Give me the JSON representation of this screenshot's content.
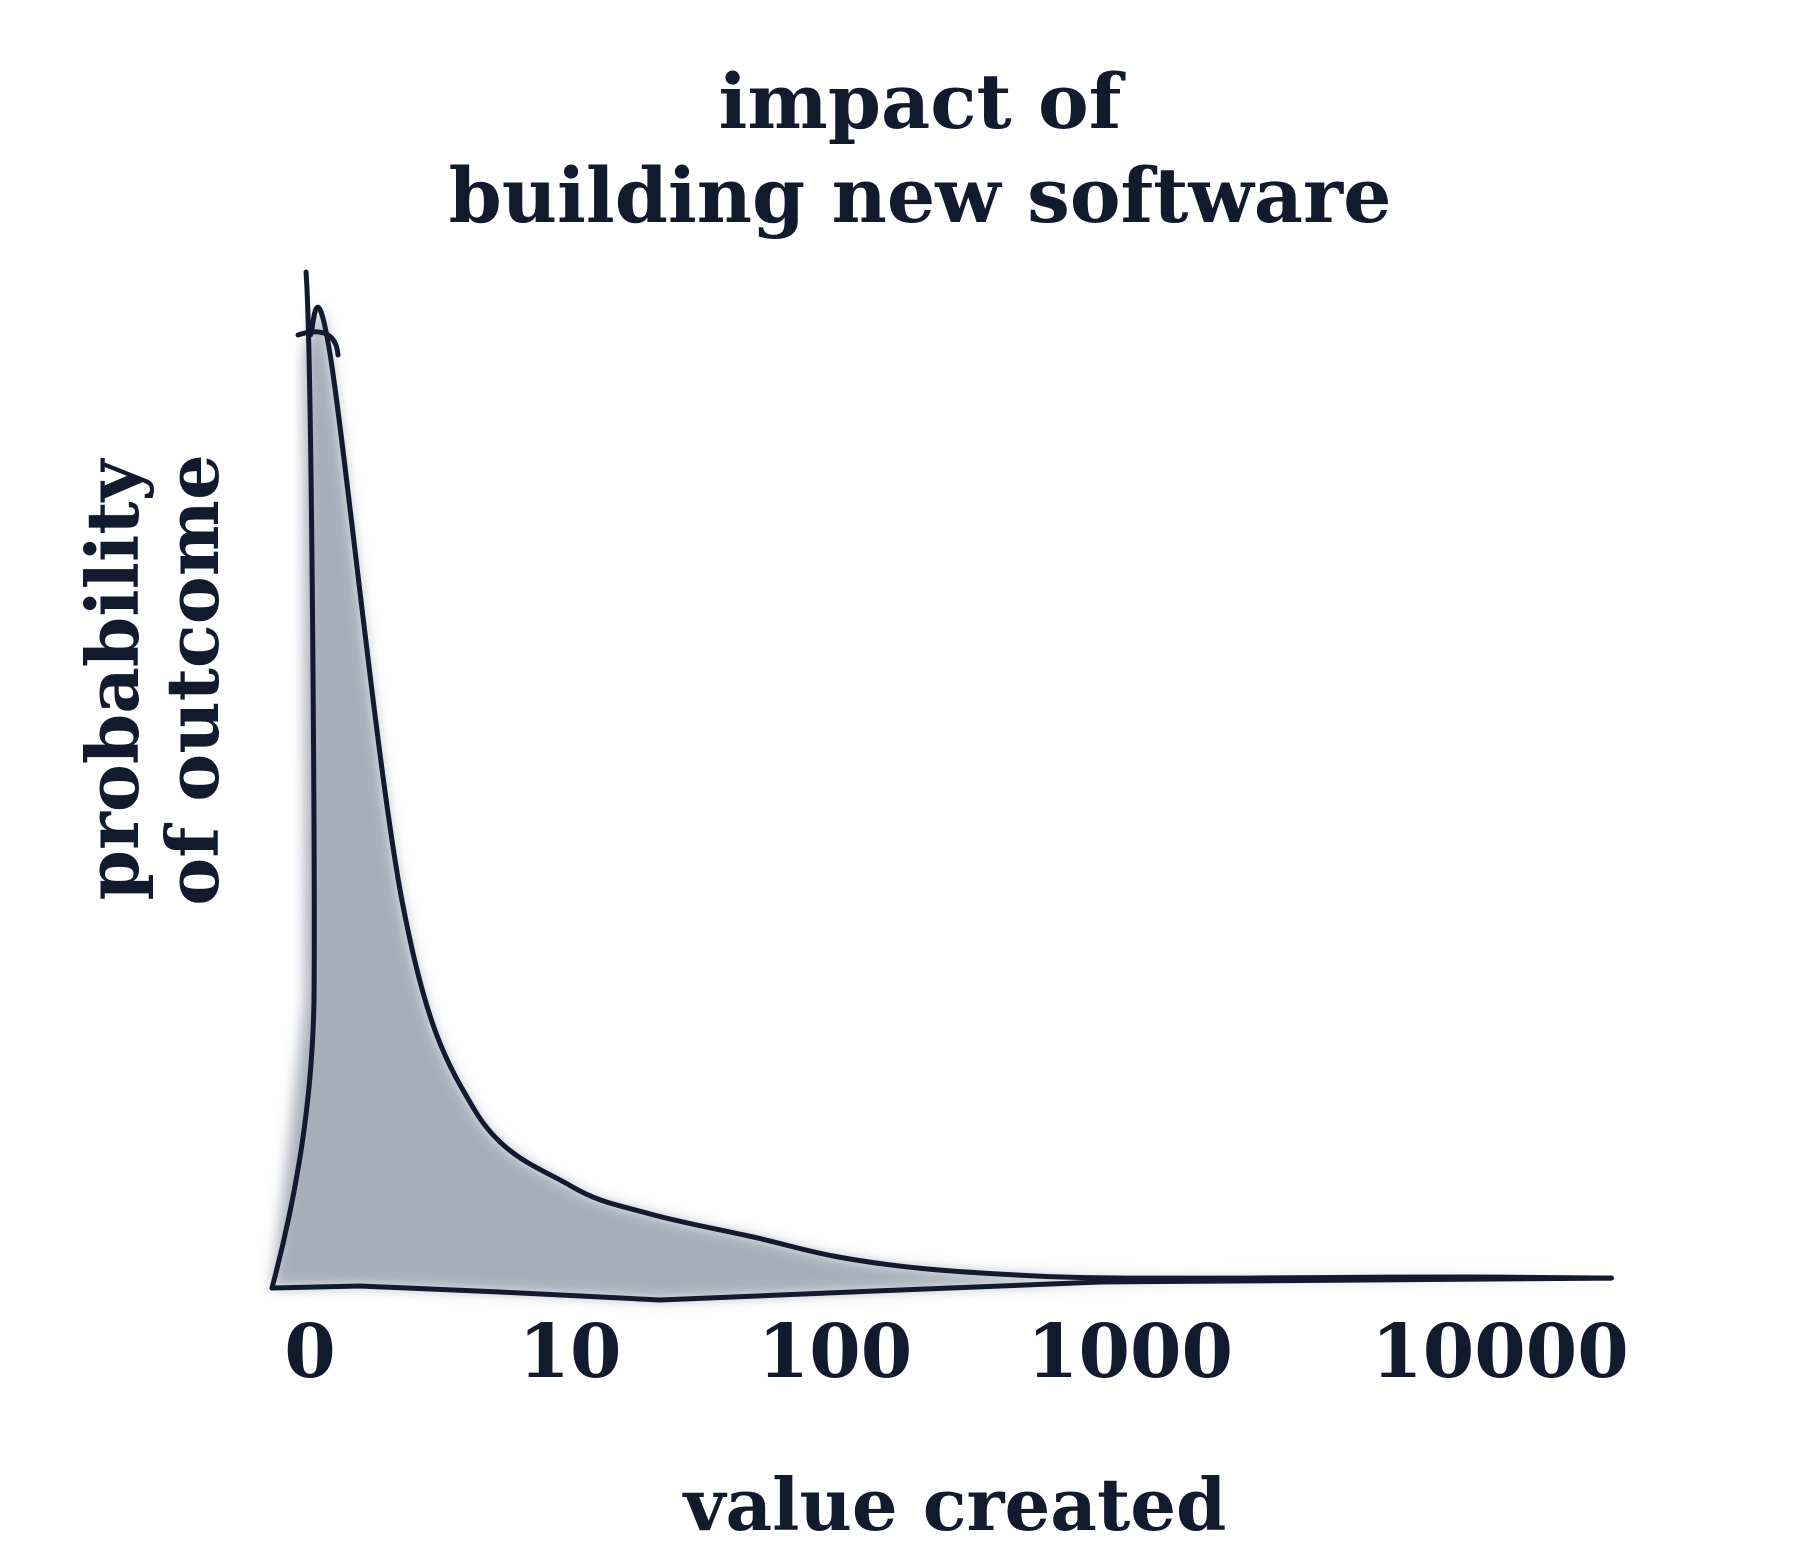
{
  "chart_data": {
    "type": "area",
    "title_lines": [
      "impact of",
      "building new software"
    ],
    "xlabel": "value created",
    "ylabel_lines": [
      "probability",
      "of outcome"
    ],
    "x_scale": "log",
    "x_ticks": [
      "0",
      "10",
      "100",
      "1000",
      "10000"
    ],
    "grid": false,
    "legend": "none",
    "colors": {
      "ink": "#121a2e",
      "fill": "#8a93a3"
    },
    "series": [
      {
        "x": [
          0,
          1,
          2,
          4,
          10,
          20,
          50,
          100,
          200,
          500,
          1000,
          2000,
          5000,
          10000,
          20000
        ],
        "y": [
          1.0,
          0.98,
          0.4,
          0.18,
          0.1,
          0.07,
          0.045,
          0.025,
          0.012,
          0.004,
          0.002,
          0.002,
          0.003,
          0.003,
          0.002
        ]
      }
    ]
  }
}
